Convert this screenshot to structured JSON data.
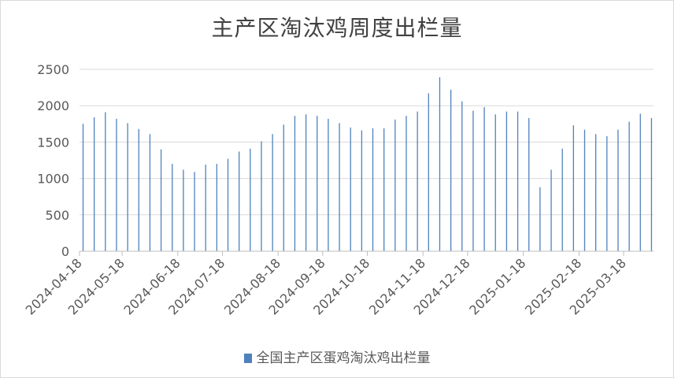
{
  "chart_data": {
    "type": "bar",
    "title": "主产区淘汰鸡周度出栏量",
    "xlabel": "",
    "ylabel": "",
    "ylim": [
      0,
      2500
    ],
    "yticks": [
      0,
      500,
      1000,
      1500,
      2000,
      2500
    ],
    "grid": true,
    "legend_position": "bottom",
    "x_tick_labels": [
      "2024-04-18",
      "2024-05-18",
      "2024-06-18",
      "2024-07-18",
      "2024-08-18",
      "2024-09-18",
      "2024-10-18",
      "2024-11-18",
      "2024-12-18",
      "2025-01-18",
      "2025-02-18",
      "2025-03-18"
    ],
    "x_tick_bar_index": [
      0,
      4,
      9,
      13,
      18,
      22,
      26,
      31,
      35,
      40,
      45,
      49
    ],
    "series": [
      {
        "name": "全国主产区蛋鸡淘汰鸡出栏量",
        "color": "#4f81bd",
        "values": [
          1750,
          1840,
          1910,
          1820,
          1760,
          1680,
          1610,
          1400,
          1200,
          1120,
          1090,
          1190,
          1200,
          1270,
          1370,
          1410,
          1510,
          1610,
          1740,
          1860,
          1880,
          1860,
          1820,
          1760,
          1700,
          1660,
          1690,
          1690,
          1810,
          1860,
          1920,
          2170,
          2390,
          2220,
          2060,
          1930,
          1980,
          1880,
          1920,
          1920,
          1830,
          880,
          1120,
          1410,
          1730,
          1670,
          1610,
          1580,
          1670,
          1780,
          1890,
          1830
        ]
      }
    ]
  }
}
